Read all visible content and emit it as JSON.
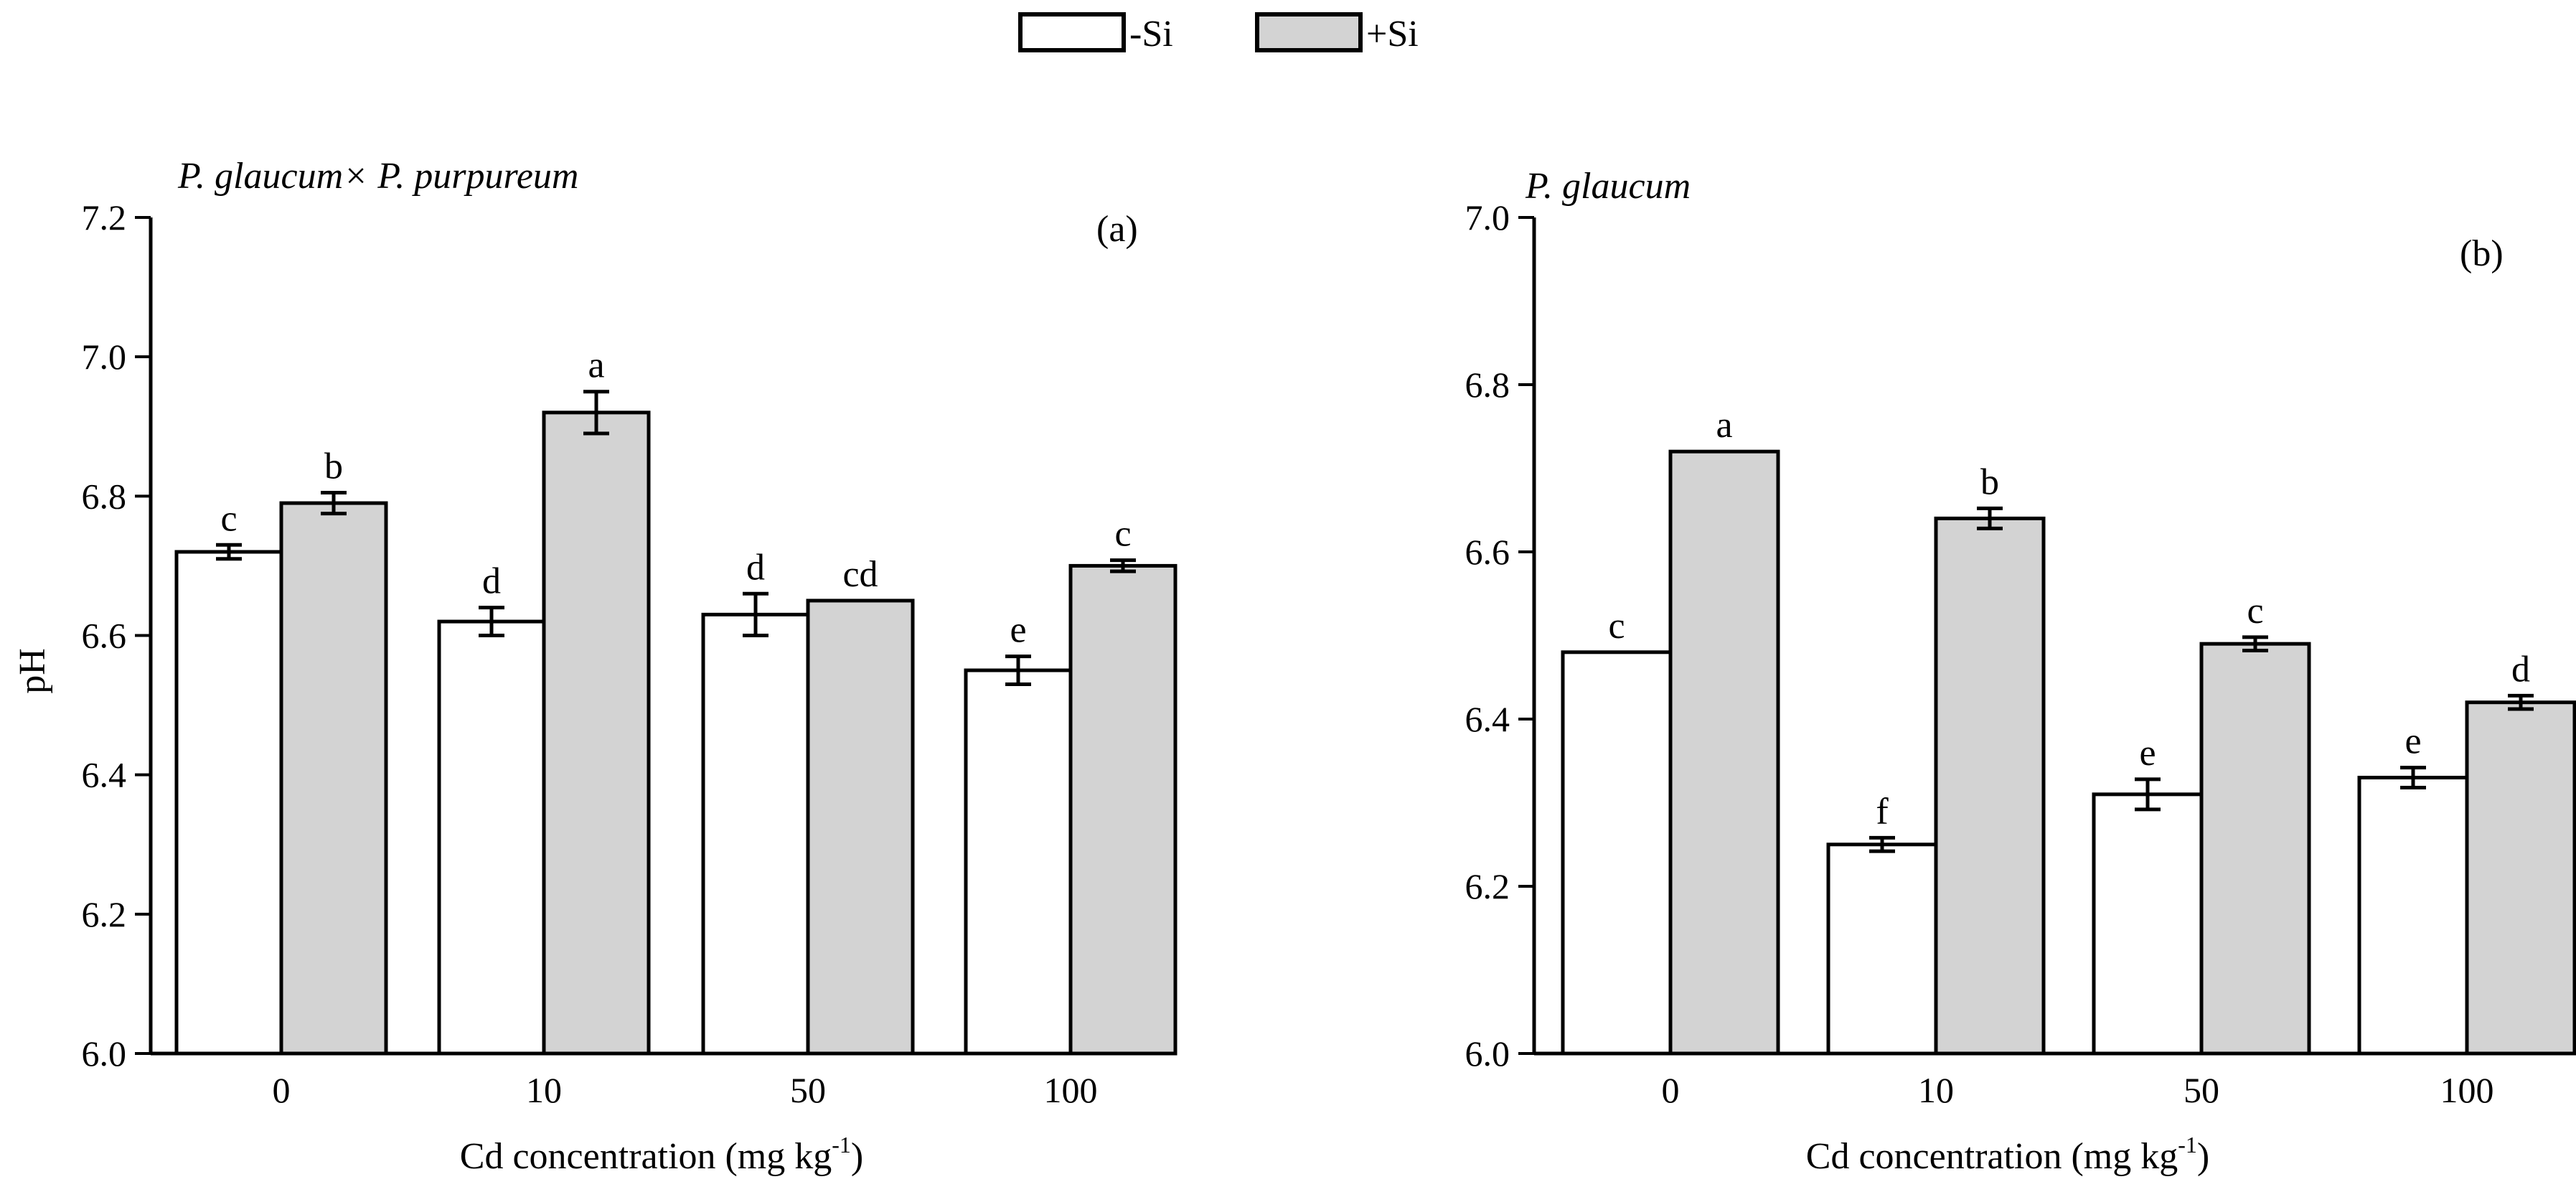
{
  "legend": {
    "items": [
      {
        "label": "-Si",
        "color": "#ffffff"
      },
      {
        "label": "+Si",
        "color": "#d3d3d3"
      }
    ]
  },
  "chart_data": [
    {
      "type": "bar",
      "panel_label": "(a)",
      "title": "P. glaucum× P. purpureum",
      "xlabel": "Cd concentration (mg kg",
      "xlabel_sup": "-1",
      "xlabel_end": ")",
      "ylabel": "pH",
      "categories": [
        "0",
        "10",
        "50",
        "100"
      ],
      "ylim": [
        6.0,
        7.2
      ],
      "yticks": [
        "6.0",
        "6.2",
        "6.4",
        "6.6",
        "6.8",
        "7.0",
        "7.2"
      ],
      "series": [
        {
          "name": "-Si",
          "color": "#ffffff",
          "values": [
            6.72,
            6.62,
            6.63,
            6.55
          ],
          "errors": [
            0.01,
            0.02,
            0.03,
            0.02
          ],
          "letters": [
            "c",
            "d",
            "d",
            "e"
          ]
        },
        {
          "name": "+Si",
          "color": "#d3d3d3",
          "values": [
            6.79,
            6.92,
            6.65,
            6.7
          ],
          "errors": [
            0.015,
            0.03,
            0.0,
            0.008
          ],
          "letters": [
            "b",
            "a",
            "cd",
            "c"
          ]
        }
      ]
    },
    {
      "type": "bar",
      "panel_label": "(b)",
      "title": "P. glaucum",
      "xlabel": "Cd concentration (mg kg",
      "xlabel_sup": "-1",
      "xlabel_end": ")",
      "ylabel": "",
      "categories": [
        "0",
        "10",
        "50",
        "100"
      ],
      "ylim": [
        6.0,
        7.0
      ],
      "yticks": [
        "6.0",
        "6.2",
        "6.4",
        "6.6",
        "6.8",
        "7.0"
      ],
      "series": [
        {
          "name": "-Si",
          "color": "#ffffff",
          "values": [
            6.48,
            6.25,
            6.31,
            6.33
          ],
          "errors": [
            0.0,
            0.008,
            0.018,
            0.012
          ],
          "letters": [
            "c",
            "f",
            "e",
            "e"
          ]
        },
        {
          "name": "+Si",
          "color": "#d3d3d3",
          "values": [
            6.72,
            6.64,
            6.49,
            6.42
          ],
          "errors": [
            0.0,
            0.012,
            0.008,
            0.008
          ],
          "letters": [
            "a",
            "b",
            "c",
            "d"
          ]
        }
      ]
    }
  ]
}
